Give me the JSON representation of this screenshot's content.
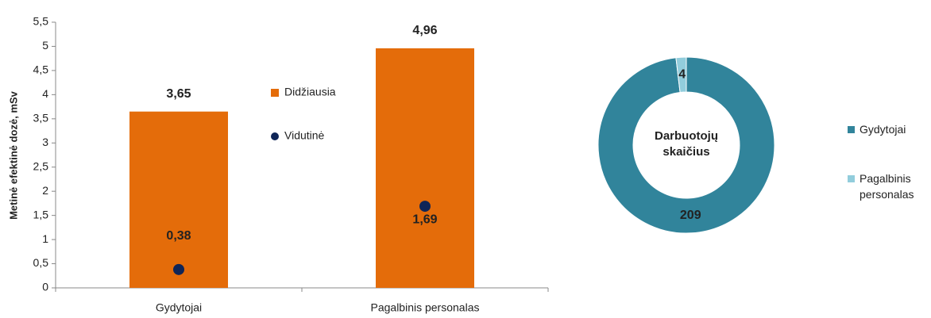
{
  "chart_data": [
    {
      "type": "bar",
      "ylabel": "Metinė efektinė dozė, mSv",
      "categories": [
        "Gydytojai",
        "Pagalbinis personalas"
      ],
      "series": [
        {
          "name": "Didžiausia",
          "color": "#e46c0a",
          "values": [
            3.65,
            4.96
          ],
          "value_labels": [
            "3,65",
            "4,96"
          ]
        },
        {
          "name": "Vidutinė",
          "color": "#0f2557",
          "marker": "circle",
          "values": [
            0.38,
            1.69
          ],
          "value_labels": [
            "0,38",
            "1,69"
          ]
        }
      ],
      "ylim": [
        0,
        5.5
      ],
      "yticks": [
        0,
        {
          "value": 0.5,
          "label": "0,5"
        },
        1,
        {
          "value": 1.5,
          "label": "1,5"
        },
        2,
        {
          "value": 2.5,
          "label": "2,5"
        },
        3,
        {
          "value": 3.5,
          "label": "3,5"
        },
        4,
        {
          "value": 4.5,
          "label": "4,5"
        },
        5,
        {
          "value": 5.5,
          "label": "5,5"
        }
      ],
      "grid": false
    },
    {
      "type": "pie",
      "donut": true,
      "center_label": "Darbuotojų skaičius",
      "categories": [
        "Gydytojai",
        "Pagalbinis personalas"
      ],
      "values": [
        209,
        4
      ],
      "colors": [
        "#31849b",
        "#92cddc"
      ]
    }
  ]
}
